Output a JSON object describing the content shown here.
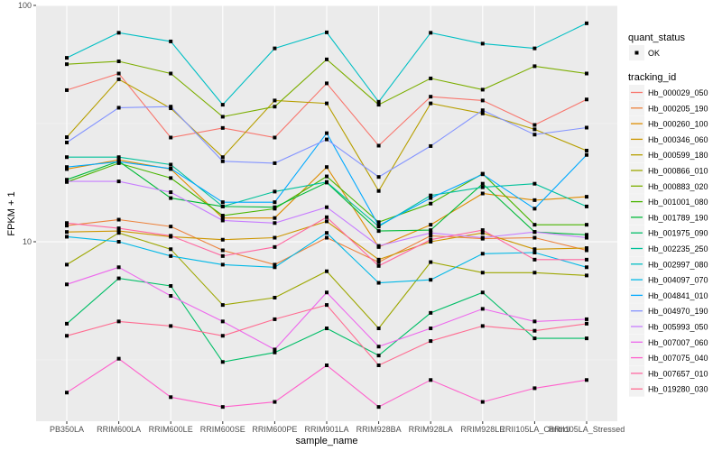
{
  "chart_data": {
    "type": "line",
    "title": "",
    "xlabel": "sample_name",
    "ylabel": "FPKM + 1",
    "yscale": "log10",
    "ylim": [
      1.75,
      100
    ],
    "y_ticks": [
      {
        "value": 10,
        "label": "10"
      },
      {
        "value": 100,
        "label": "100"
      }
    ],
    "grid": true,
    "legend_position": "right",
    "categories": [
      "PB350LA",
      "RRIM600LA",
      "RRIM600LE",
      "RRIM600SE",
      "RRIM600PE",
      "RRIM901LA",
      "RRIM928BA",
      "RRIM928LA",
      "RRIM928LE",
      "RRII105LA_Control",
      "RRII105LA_Stressed"
    ],
    "shape_legend": {
      "title": "quant_status",
      "items": [
        {
          "label": "OK"
        }
      ]
    },
    "color_legend_title": "tracking_id",
    "series": [
      {
        "name": "Hb_000029_050",
        "color": "#F8766D",
        "values": [
          43.8,
          51.5,
          27.6,
          30.3,
          27.6,
          46.8,
          25.5,
          41.1,
          39.6,
          31.2,
          40.0
        ]
      },
      {
        "name": "Hb_000205_190",
        "color": "#EC823C",
        "values": [
          11.7,
          12.4,
          11.6,
          9.2,
          8.0,
          10.4,
          8.2,
          10.6,
          10.3,
          10.4,
          9.2
        ]
      },
      {
        "name": "Hb_000260_100",
        "color": "#DE8C00",
        "values": [
          20.3,
          22.2,
          20.3,
          12.6,
          12.6,
          20.7,
          9.5,
          11.8,
          16.0,
          15.0,
          15.5
        ]
      },
      {
        "name": "Hb_000346_060",
        "color": "#CD9600",
        "values": [
          11.0,
          11.1,
          10.5,
          10.2,
          10.4,
          12.2,
          8.4,
          10.0,
          10.9,
          9.3,
          9.4
        ]
      },
      {
        "name": "Hb_000599_180",
        "color": "#B79F00",
        "values": [
          27.7,
          48.7,
          36.7,
          22.8,
          39.6,
          38.5,
          16.4,
          38.5,
          34.9,
          29.9,
          24.3
        ]
      },
      {
        "name": "Hb_000866_010",
        "color": "#9DA700",
        "values": [
          8.0,
          10.9,
          9.3,
          5.4,
          5.8,
          7.5,
          4.3,
          8.2,
          7.4,
          7.4,
          7.2
        ]
      },
      {
        "name": "Hb_000883_020",
        "color": "#7CAE00",
        "values": [
          56.4,
          58.0,
          51.5,
          33.8,
          37.3,
          59.1,
          38.0,
          49.1,
          44.0,
          55.3,
          51.5
        ]
      },
      {
        "name": "Hb_001001_080",
        "color": "#49B500",
        "values": [
          17.9,
          21.5,
          18.6,
          12.9,
          13.8,
          18.9,
          12.1,
          14.5,
          19.4,
          11.8,
          11.8
        ]
      },
      {
        "name": "Hb_001789_190",
        "color": "#00BA38",
        "values": [
          18.3,
          21.9,
          15.3,
          14.1,
          14.0,
          17.8,
          11.1,
          11.2,
          17.6,
          11.0,
          10.7
        ]
      },
      {
        "name": "Hb_001975_090",
        "color": "#00BE67",
        "values": [
          4.5,
          7.0,
          6.5,
          3.1,
          3.4,
          4.3,
          3.3,
          5.0,
          6.1,
          3.9,
          3.9
        ]
      },
      {
        "name": "Hb_002235_250",
        "color": "#00C19A",
        "values": [
          22.8,
          22.8,
          21.2,
          14.1,
          16.3,
          17.9,
          11.6,
          15.7,
          17.0,
          17.6,
          14.1
        ]
      },
      {
        "name": "Hb_002997_080",
        "color": "#00BFC4",
        "values": [
          60.0,
          76.6,
          70.4,
          38.0,
          65.8,
          76.9,
          39.1,
          76.6,
          68.9,
          65.8,
          84.0
        ]
      },
      {
        "name": "Hb_004097_070",
        "color": "#00B8E7",
        "values": [
          10.5,
          10.0,
          8.7,
          8.0,
          7.8,
          10.9,
          6.7,
          6.9,
          8.9,
          9.0,
          7.8
        ]
      },
      {
        "name": "Hb_004841_010",
        "color": "#00A9FF",
        "values": [
          20.7,
          21.8,
          20.4,
          14.7,
          14.7,
          28.8,
          11.7,
          15.3,
          19.3,
          13.8,
          23.3
        ]
      },
      {
        "name": "Hb_004970_190",
        "color": "#8494FF",
        "values": [
          26.3,
          36.9,
          37.3,
          21.9,
          21.5,
          27.1,
          18.8,
          25.4,
          36.0,
          28.4,
          30.4
        ]
      },
      {
        "name": "Hb_005993_050",
        "color": "#C77CFF",
        "values": [
          18.0,
          18.0,
          16.2,
          12.3,
          12.0,
          14.0,
          9.6,
          10.9,
          10.4,
          11.0,
          10.4
        ]
      },
      {
        "name": "Hb_007007_060",
        "color": "#ED68ED",
        "values": [
          6.6,
          7.8,
          5.9,
          4.6,
          3.5,
          6.1,
          3.6,
          4.3,
          5.2,
          4.6,
          4.7
        ]
      },
      {
        "name": "Hb_007075_040",
        "color": "#FF61CC",
        "values": [
          2.3,
          3.2,
          2.2,
          2.0,
          2.1,
          3.0,
          2.0,
          2.6,
          2.1,
          2.4,
          2.6
        ]
      },
      {
        "name": "Hb_007657_010",
        "color": "#FF68A1",
        "values": [
          12.0,
          11.4,
          10.6,
          8.7,
          9.5,
          12.7,
          7.9,
          10.2,
          11.2,
          8.4,
          8.4
        ]
      },
      {
        "name": "Hb_019280_030",
        "color": "#FF6C91",
        "values": [
          4.0,
          4.6,
          4.4,
          4.0,
          4.7,
          5.4,
          3.0,
          3.8,
          4.4,
          4.2,
          4.5
        ]
      }
    ]
  }
}
